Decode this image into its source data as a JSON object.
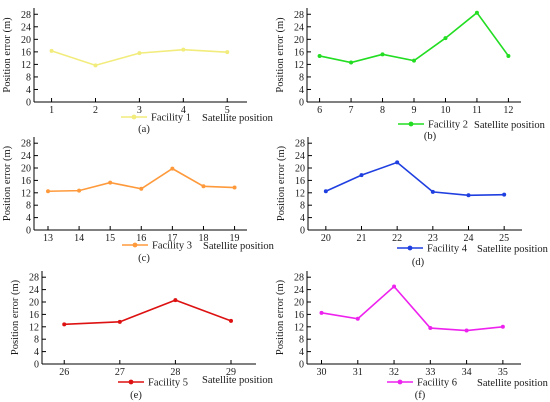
{
  "chart_data": [
    {
      "type": "line",
      "panel_label": "(a)",
      "x": [
        1,
        2,
        3,
        4,
        5
      ],
      "xticks": [
        "1",
        "2",
        "3",
        "4",
        "5"
      ],
      "xlim": [
        0.6,
        5.45
      ],
      "series": [
        {
          "name": "Facility 1",
          "values": [
            16.3,
            11.7,
            15.6,
            16.7,
            15.9
          ],
          "color": "#f2ec7c"
        }
      ],
      "xlabel": "Satellite position",
      "ylabel": "Position error (m)",
      "ylim": [
        0,
        30
      ],
      "yticks": [
        "0",
        "4",
        "8",
        "12",
        "16",
        "20",
        "24",
        "28"
      ],
      "grid": false,
      "legend": "bottom"
    },
    {
      "type": "line",
      "panel_label": "(b)",
      "x": [
        6,
        7,
        8,
        9,
        10,
        11,
        12
      ],
      "xticks": [
        "6",
        "7",
        "8",
        "9",
        "10",
        "11",
        "12"
      ],
      "xlim": [
        5.6,
        12.4
      ],
      "series": [
        {
          "name": "Facility 2",
          "values": [
            14.7,
            12.6,
            15.2,
            13.2,
            20.4,
            28.5,
            14.7
          ],
          "color": "#22dd22"
        }
      ],
      "xlabel": "Satellite position",
      "ylabel": "Position error (m)",
      "ylim": [
        0,
        30
      ],
      "yticks": [
        "0",
        "4",
        "8",
        "12",
        "16",
        "20",
        "24",
        "28"
      ],
      "grid": false,
      "legend": "bottom"
    },
    {
      "type": "line",
      "panel_label": "(c)",
      "x": [
        13,
        14,
        15,
        16,
        17,
        18,
        19
      ],
      "xticks": [
        "13",
        "14",
        "15",
        "16",
        "17",
        "18",
        "19"
      ],
      "xlim": [
        12.55,
        19.4
      ],
      "series": [
        {
          "name": "Facility 3",
          "values": [
            12.5,
            12.7,
            15.3,
            13.3,
            19.8,
            14.1,
            13.7
          ],
          "color": "#ff9a3c"
        }
      ],
      "xlabel": "Satellite position",
      "ylabel": "Position error (m)",
      "ylim": [
        0,
        30
      ],
      "yticks": [
        "0",
        "4",
        "8",
        "12",
        "16",
        "20",
        "24",
        "28"
      ],
      "grid": false,
      "legend": "bottom"
    },
    {
      "type": "line",
      "panel_label": "(d)",
      "x": [
        20,
        21,
        22,
        23,
        24,
        25
      ],
      "xticks": [
        "20",
        "21",
        "22",
        "23",
        "24",
        "25"
      ],
      "xlim": [
        19.5,
        25.5
      ],
      "series": [
        {
          "name": "Facility 4",
          "values": [
            12.5,
            17.7,
            21.8,
            12.3,
            11.2,
            11.4
          ],
          "color": "#1f3fe0"
        }
      ],
      "xlabel": "Satellite position",
      "ylabel": "Position error (m)",
      "ylim": [
        0,
        30
      ],
      "yticks": [
        "0",
        "4",
        "8",
        "12",
        "16",
        "20",
        "24",
        "28"
      ],
      "grid": false,
      "legend": "bottom"
    },
    {
      "type": "line",
      "panel_label": "(e)",
      "x": [
        26,
        27,
        28,
        29
      ],
      "xticks": [
        "26",
        "27",
        "28",
        "29"
      ],
      "xlim": [
        25.6,
        29.45
      ],
      "series": [
        {
          "name": "Facility 5",
          "values": [
            12.8,
            13.6,
            20.6,
            13.9
          ],
          "color": "#dd1111"
        }
      ],
      "xlabel": "Satellite position",
      "ylabel": "Position error (m)",
      "ylim": [
        0,
        30
      ],
      "yticks": [
        "0",
        "4",
        "8",
        "12",
        "16",
        "20",
        "24",
        "28"
      ],
      "grid": false,
      "legend": "bottom"
    },
    {
      "type": "line",
      "panel_label": "(f)",
      "x": [
        30,
        31,
        32,
        33,
        34,
        35
      ],
      "xticks": [
        "30",
        "31",
        "32",
        "33",
        "34",
        "35"
      ],
      "xlim": [
        29.6,
        35.5
      ],
      "series": [
        {
          "name": "Facility 6",
          "values": [
            16.5,
            14.6,
            25.0,
            11.6,
            10.8,
            12.0
          ],
          "color": "#ee22ee"
        }
      ],
      "xlabel": "Satellite position",
      "ylabel": "Position error (m)",
      "ylim": [
        0,
        30
      ],
      "yticks": [
        "0",
        "4",
        "8",
        "12",
        "16",
        "20",
        "24",
        "28"
      ],
      "grid": false,
      "legend": "bottom"
    }
  ]
}
